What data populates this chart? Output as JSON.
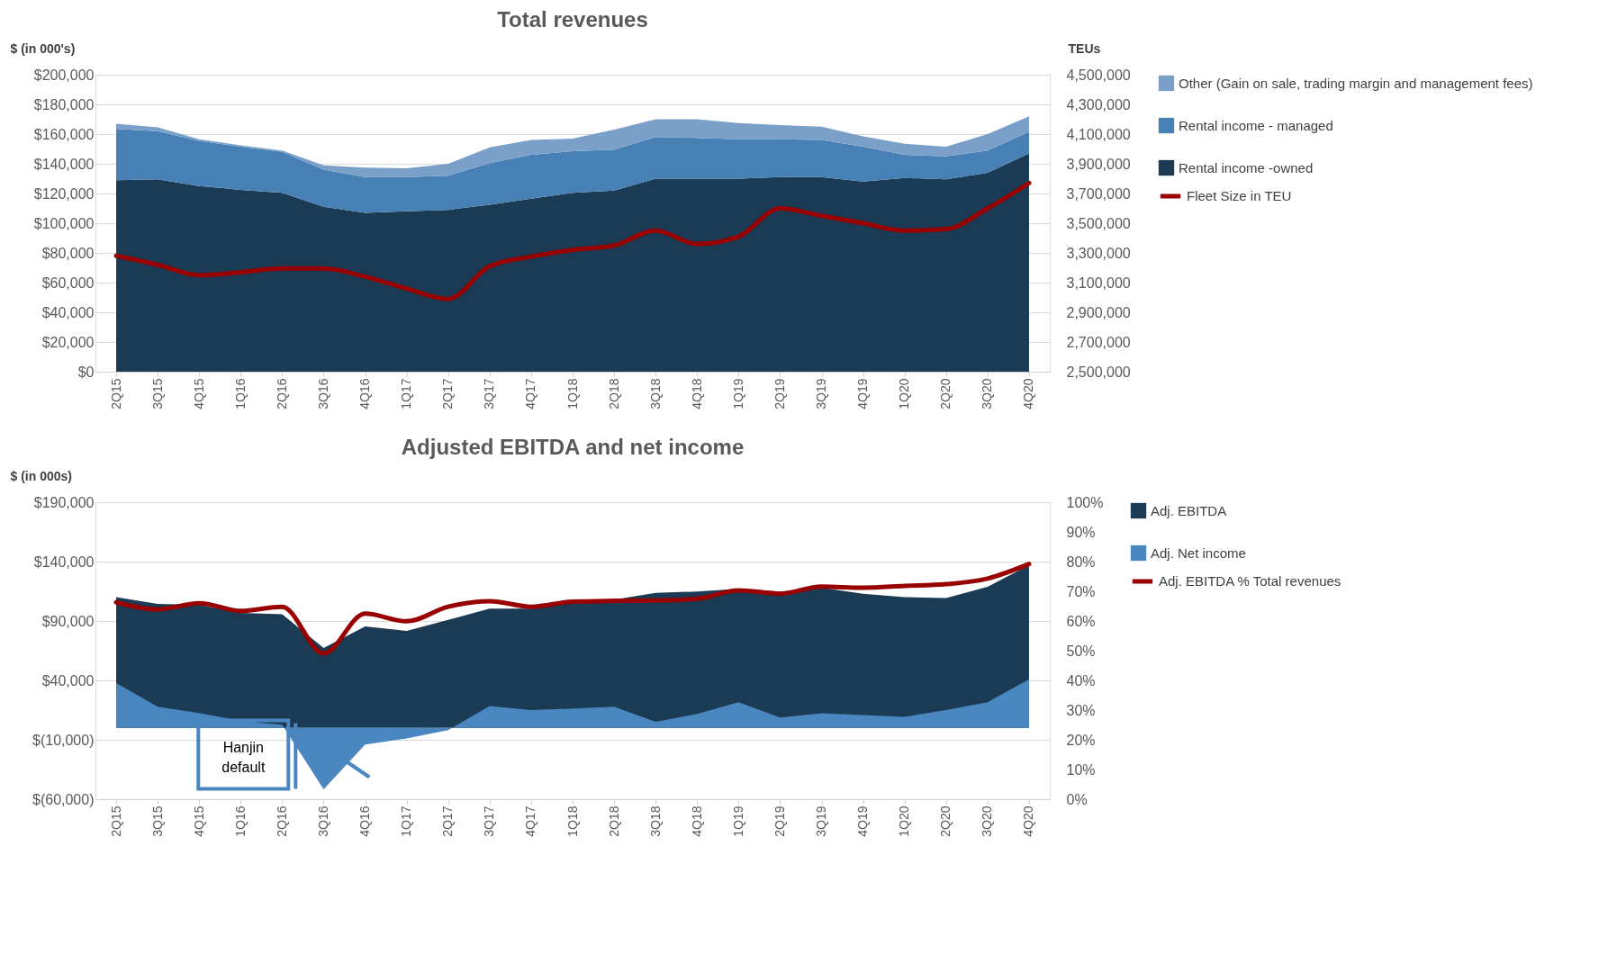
{
  "chart_data": [
    {
      "type": "area",
      "title": "Total revenues",
      "ylabel": "$ (in 000's)",
      "y2label": "TEUs",
      "stacked": true,
      "legend": "right",
      "grid": "y",
      "categories": [
        "2Q15",
        "3Q15",
        "4Q15",
        "1Q16",
        "2Q16",
        "3Q16",
        "4Q16",
        "1Q17",
        "2Q17",
        "3Q17",
        "4Q17",
        "1Q18",
        "2Q18",
        "3Q18",
        "4Q18",
        "1Q19",
        "2Q19",
        "3Q19",
        "4Q19",
        "1Q20",
        "2Q20",
        "3Q20",
        "4Q20"
      ],
      "ylim": [
        0,
        200000
      ],
      "yticks": [
        {
          "value": 0,
          "label": "$0"
        },
        {
          "value": 20000,
          "label": "$20,000"
        },
        {
          "value": 40000,
          "label": "$40,000"
        },
        {
          "value": 60000,
          "label": "$60,000"
        },
        {
          "value": 80000,
          "label": "$80,000"
        },
        {
          "value": 100000,
          "label": "$100,000"
        },
        {
          "value": 120000,
          "label": "$120,000"
        },
        {
          "value": 140000,
          "label": "$140,000"
        },
        {
          "value": 160000,
          "label": "$160,000"
        },
        {
          "value": 180000,
          "label": "$180,000"
        },
        {
          "value": 200000,
          "label": "$200,000"
        }
      ],
      "y2lim": [
        2500000,
        4500000
      ],
      "y2ticks": [
        {
          "value": 2500000,
          "label": "2,500,000"
        },
        {
          "value": 2700000,
          "label": "2,700,000"
        },
        {
          "value": 2900000,
          "label": "2,900,000"
        },
        {
          "value": 3100000,
          "label": "3,100,000"
        },
        {
          "value": 3300000,
          "label": "3,300,000"
        },
        {
          "value": 3500000,
          "label": "3,500,000"
        },
        {
          "value": 3700000,
          "label": "3,700,000"
        },
        {
          "value": 3900000,
          "label": "3,900,000"
        },
        {
          "value": 4100000,
          "label": "4,100,000"
        },
        {
          "value": 4300000,
          "label": "4,300,000"
        },
        {
          "value": 4500000,
          "label": "4,500,000"
        }
      ],
      "series": [
        {
          "name": "Rental income -owned",
          "color": "#1b3a54",
          "values": [
            129000,
            129500,
            125000,
            122500,
            120500,
            111000,
            107000,
            108000,
            109000,
            112500,
            116500,
            120500,
            122000,
            130000,
            130000,
            130000,
            131000,
            131000,
            128000,
            130500,
            129500,
            134000,
            147000
          ]
        },
        {
          "name": "Rental income - managed",
          "color": "#4680b4",
          "values": [
            34500,
            32500,
            30500,
            29000,
            27500,
            25000,
            24000,
            23000,
            23000,
            28000,
            29500,
            28000,
            27500,
            28000,
            27500,
            26500,
            25500,
            25000,
            23500,
            15500,
            15500,
            15000,
            14500
          ]
        },
        {
          "name": "Other (Gain on sale, trading margin and management fees)",
          "color": "#7aa0c9",
          "values": [
            3500,
            2500,
            1000,
            1000,
            1000,
            3000,
            6500,
            6000,
            8000,
            10500,
            10000,
            8500,
            13500,
            12000,
            12500,
            11000,
            9500,
            9000,
            7000,
            7500,
            6500,
            11000,
            10500
          ]
        },
        {
          "name": "Fleet Size in TEU",
          "type": "line",
          "line_style": "solid",
          "axis": "y2",
          "color": "#990000",
          "values": [
            3280000,
            3220000,
            3150000,
            3170000,
            3195000,
            3195000,
            3140000,
            3060000,
            2990000,
            3210000,
            3275000,
            3320000,
            3350000,
            3450000,
            3360000,
            3410000,
            3600000,
            3550000,
            3500000,
            3450000,
            3460000,
            3600000,
            3770000
          ]
        }
      ]
    },
    {
      "type": "area",
      "title": "Adjusted EBITDA and net income",
      "ylabel": "$ (in 000s)",
      "stacked": false,
      "legend": "right",
      "grid": "y",
      "categories": [
        "2Q15",
        "3Q15",
        "4Q15",
        "1Q16",
        "2Q16",
        "3Q16",
        "4Q16",
        "1Q17",
        "2Q17",
        "3Q17",
        "4Q17",
        "1Q18",
        "2Q18",
        "3Q18",
        "4Q18",
        "1Q19",
        "2Q19",
        "3Q19",
        "4Q19",
        "1Q20",
        "2Q20",
        "3Q20",
        "4Q20"
      ],
      "ylim": [
        -60000,
        190000
      ],
      "yticks": [
        {
          "value": -60000,
          "label": "$(60,000)"
        },
        {
          "value": -10000,
          "label": "$(10,000)"
        },
        {
          "value": 40000,
          "label": "$40,000"
        },
        {
          "value": 90000,
          "label": "$90,000"
        },
        {
          "value": 140000,
          "label": "$140,000"
        },
        {
          "value": 190000,
          "label": "$190,000"
        }
      ],
      "y2lim": [
        0,
        100
      ],
      "y2ticks": [
        {
          "value": 0,
          "label": "0%"
        },
        {
          "value": 10,
          "label": "10%"
        },
        {
          "value": 20,
          "label": "20%"
        },
        {
          "value": 30,
          "label": "30%"
        },
        {
          "value": 40,
          "label": "40%"
        },
        {
          "value": 50,
          "label": "50%"
        },
        {
          "value": 60,
          "label": "60%"
        },
        {
          "value": 70,
          "label": "70%"
        },
        {
          "value": 80,
          "label": "80%"
        },
        {
          "value": 90,
          "label": "90%"
        },
        {
          "value": 100,
          "label": "100%"
        }
      ],
      "annotations": [
        "Hanjin default"
      ],
      "series": [
        {
          "name": "Adj. EBITDA",
          "color": "#1b3a54",
          "values": [
            110000,
            104300,
            103700,
            96900,
            95700,
            67300,
            85500,
            81600,
            90900,
            100400,
            100400,
            107000,
            108000,
            113600,
            114800,
            117000,
            114800,
            118000,
            113000,
            110000,
            109400,
            118700,
            137000
          ]
        },
        {
          "name": "Adj. Net income",
          "color": "#4a86bf",
          "values": [
            37800,
            17800,
            12500,
            6000,
            2700,
            -51600,
            -14000,
            -8800,
            -1800,
            18500,
            15000,
            16400,
            17800,
            5200,
            11800,
            21600,
            8800,
            12400,
            10900,
            9400,
            15000,
            21600,
            41000
          ]
        },
        {
          "name": "Adj. EBITDA % Total revenues",
          "type": "line",
          "line_style": "solid",
          "axis": "y2",
          "color": "#990000",
          "values": [
            66.3,
            63.9,
            66.0,
            63.4,
            64.8,
            49.1,
            62.5,
            59.9,
            64.8,
            66.7,
            64.8,
            66.5,
            66.8,
            66.9,
            67.5,
            70.3,
            69.2,
            71.6,
            71.2,
            71.8,
            72.4,
            74.3,
            79.2
          ]
        }
      ]
    }
  ]
}
